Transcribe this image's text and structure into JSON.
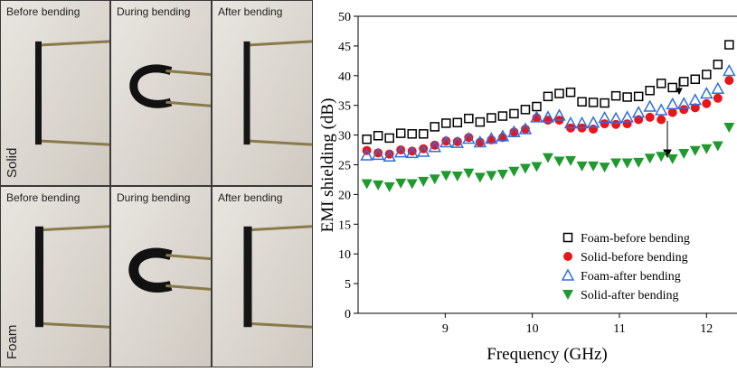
{
  "photos": {
    "rows": [
      {
        "label": "Solid",
        "columns": [
          "Before bending",
          "During bending",
          "After bending"
        ]
      },
      {
        "label": "Foam",
        "columns": [
          "Before bending",
          "During bending",
          "After bending"
        ]
      }
    ]
  },
  "chart_data": {
    "type": "scatter",
    "xlabel": "Frequency (GHz)",
    "ylabel": "EMI shielding (dB)",
    "xlim": [
      8.0,
      12.35
    ],
    "xticks": [
      9,
      10,
      11,
      12
    ],
    "ylim": [
      0,
      50
    ],
    "yticks": [
      0,
      5,
      10,
      15,
      20,
      25,
      30,
      35,
      40,
      45,
      50
    ],
    "legend": "lower right",
    "x": [
      8.1,
      8.23,
      8.36,
      8.49,
      8.62,
      8.75,
      8.88,
      9.01,
      9.14,
      9.27,
      9.4,
      9.53,
      9.66,
      9.79,
      9.92,
      10.05,
      10.18,
      10.31,
      10.44,
      10.57,
      10.7,
      10.83,
      10.96,
      11.09,
      11.22,
      11.35,
      11.48,
      11.61,
      11.74,
      11.87,
      12.0,
      12.13,
      12.26
    ],
    "series": [
      {
        "name": "Foam-before bending",
        "color": "#000000",
        "marker": "square-open",
        "values": [
          29.3,
          29.9,
          29.5,
          30.3,
          30.2,
          30.2,
          31.4,
          32.0,
          32.1,
          32.8,
          32.2,
          32.9,
          33.2,
          33.6,
          34.3,
          34.8,
          36.5,
          37.0,
          37.2,
          35.6,
          35.5,
          35.4,
          36.6,
          36.4,
          36.5,
          37.5,
          38.7,
          38.0,
          39.0,
          39.4,
          40.2,
          41.9,
          45.2
        ]
      },
      {
        "name": "Solid-before bending",
        "color": "#e8151b",
        "marker": "circle",
        "values": [
          27.4,
          27.0,
          26.8,
          27.5,
          27.3,
          27.7,
          28.3,
          29.0,
          28.9,
          29.6,
          28.8,
          29.2,
          29.6,
          30.5,
          31.0,
          32.9,
          32.5,
          32.5,
          31.2,
          31.2,
          31.0,
          31.9,
          31.8,
          31.9,
          32.6,
          33.0,
          32.6,
          33.8,
          34.3,
          34.6,
          35.3,
          36.2,
          39.2
        ]
      },
      {
        "name": "Foam-after bending",
        "color": "#2f6fdc",
        "marker": "triangle-open",
        "values": [
          26.6,
          26.7,
          26.4,
          27.1,
          27.0,
          27.2,
          28.0,
          28.8,
          28.7,
          29.4,
          28.8,
          29.4,
          29.8,
          30.5,
          31.0,
          33.0,
          33.0,
          33.3,
          32.0,
          32.0,
          32.1,
          32.9,
          32.8,
          33.0,
          33.8,
          34.8,
          34.2,
          35.2,
          35.3,
          35.9,
          37.0,
          37.8,
          40.8
        ]
      },
      {
        "name": "Solid-after bending",
        "color": "#1f9a2e",
        "marker": "triangle-down",
        "values": [
          21.8,
          21.6,
          21.3,
          21.9,
          21.8,
          22.2,
          22.6,
          23.2,
          23.1,
          23.6,
          22.9,
          23.2,
          23.4,
          23.9,
          24.4,
          24.7,
          26.2,
          25.6,
          25.7,
          24.8,
          24.8,
          24.6,
          25.3,
          25.3,
          25.4,
          26.1,
          26.4,
          26.0,
          26.9,
          27.4,
          27.7,
          28.2,
          31.3
        ]
      }
    ]
  }
}
